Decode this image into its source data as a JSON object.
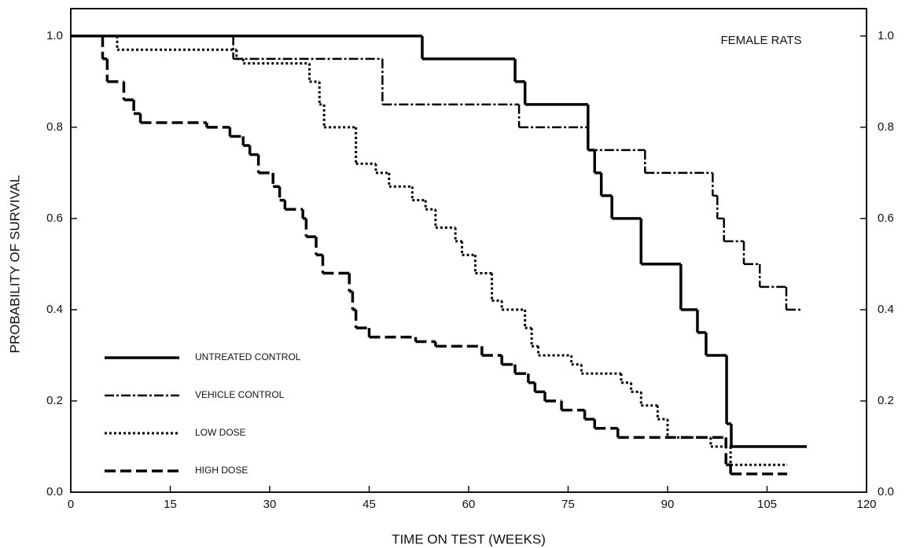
{
  "chart_data": {
    "type": "line",
    "step": "post",
    "annotation": "FEMALE RATS",
    "xlabel": "TIME ON TEST (WEEKS)",
    "ylabel": "PROBABILITY OF SURVIVAL",
    "xlim": [
      0,
      120
    ],
    "xticks": [
      0,
      15,
      30,
      45,
      60,
      75,
      90,
      105,
      120
    ],
    "ylim": [
      0,
      1.06
    ],
    "yticks": [
      {
        "value": 0,
        "label": "0.0"
      },
      0.2,
      0.4,
      0.6,
      0.8,
      {
        "value": 1,
        "label": "1.0"
      }
    ],
    "y2lim": [
      0,
      1.06
    ],
    "y2ticks": [
      {
        "value": 0,
        "label": "0.0"
      },
      0.2,
      0.4,
      0.6,
      0.8,
      {
        "value": 1,
        "label": "1.0"
      }
    ],
    "legend": "lower left",
    "series": [
      {
        "name": "UNTREATED CONTROL",
        "color": "#000000",
        "style": "solid",
        "x": [
          0,
          53,
          67,
          68.5,
          78,
          79,
          80,
          81.6,
          86,
          92,
          94.5,
          95.8,
          98.9,
          99.6,
          111
        ],
        "values": [
          1.0,
          0.95,
          0.9,
          0.85,
          0.75,
          0.7,
          0.65,
          0.6,
          0.5,
          0.4,
          0.35,
          0.3,
          0.15,
          0.1,
          0.1
        ]
      },
      {
        "name": "VEHICLE CONTROL",
        "color": "#000000",
        "style": "dashdot",
        "x": [
          0,
          24.5,
          47,
          67.6,
          78,
          86.6,
          96.8,
          97.5,
          98.5,
          101.5,
          103.9,
          107.9,
          110
        ],
        "values": [
          1.0,
          0.95,
          0.85,
          0.8,
          0.75,
          0.7,
          0.65,
          0.6,
          0.55,
          0.5,
          0.45,
          0.4,
          0.4
        ]
      },
      {
        "name": "LOW DOSE",
        "color": "#000000",
        "style": "dotted",
        "x": [
          0,
          7,
          25,
          26,
          36,
          37.5,
          38.2,
          43,
          46,
          48,
          51.5,
          53.5,
          55,
          58,
          59,
          61,
          63.5,
          65,
          68.5,
          69.5,
          70.5,
          75.5,
          77,
          83,
          84.5,
          86,
          88.5,
          90,
          96.5,
          99.5,
          108
        ],
        "values": [
          1.0,
          0.97,
          0.95,
          0.94,
          0.9,
          0.85,
          0.8,
          0.72,
          0.7,
          0.67,
          0.64,
          0.62,
          0.58,
          0.55,
          0.52,
          0.48,
          0.42,
          0.4,
          0.36,
          0.32,
          0.3,
          0.28,
          0.26,
          0.24,
          0.22,
          0.19,
          0.16,
          0.12,
          0.1,
          0.06,
          0.06
        ]
      },
      {
        "name": "HIGH DOSE",
        "color": "#000000",
        "style": "dashed",
        "x": [
          0,
          4.8,
          5.5,
          8,
          9.5,
          10.5,
          20.5,
          24,
          26,
          27,
          28.3,
          30.5,
          31.5,
          32.3,
          35,
          35.5,
          37,
          38,
          42,
          42.5,
          43,
          45,
          52,
          55,
          62,
          65,
          67,
          69,
          70,
          71.5,
          74,
          77.5,
          79,
          82.5,
          98.8,
          99.5,
          108
        ],
        "values": [
          1.0,
          0.95,
          0.9,
          0.86,
          0.83,
          0.81,
          0.8,
          0.78,
          0.76,
          0.74,
          0.7,
          0.67,
          0.64,
          0.62,
          0.6,
          0.56,
          0.52,
          0.48,
          0.44,
          0.4,
          0.36,
          0.34,
          0.33,
          0.32,
          0.3,
          0.28,
          0.26,
          0.24,
          0.22,
          0.2,
          0.18,
          0.16,
          0.14,
          0.12,
          0.06,
          0.04,
          0.04
        ]
      }
    ]
  }
}
